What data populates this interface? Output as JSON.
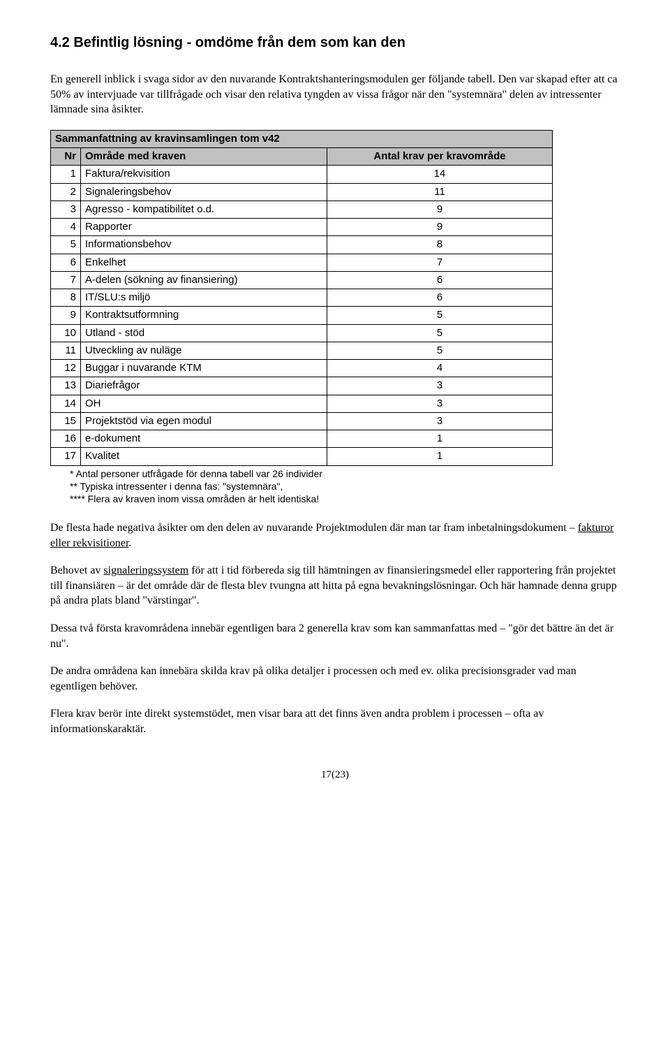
{
  "heading": "4.2 Befintlig lösning - omdöme från dem som kan den",
  "para1": "En generell inblick i svaga sidor av den nuvarande Kontraktshanteringsmodulen ger följande tabell. Den var skapad efter att ca 50% av intervjuade var tillfrågade och visar den relativa tyngden av vissa frågor när den \"systemnära\" delen av intressenter lämnade sina åsikter.",
  "table": {
    "title": "Sammanfattning av kravinsamlingen tom v42",
    "col_nr": "Nr",
    "col_area": "Område med kraven",
    "col_count": "Antal krav per kravområde",
    "rows": [
      {
        "nr": "1",
        "area": "Faktura/rekvisition",
        "count": "14"
      },
      {
        "nr": "2",
        "area": "Signaleringsbehov",
        "count": "11"
      },
      {
        "nr": "3",
        "area": "Agresso - kompatibilitet o.d.",
        "count": "9"
      },
      {
        "nr": "4",
        "area": "Rapporter",
        "count": "9"
      },
      {
        "nr": "5",
        "area": "Informationsbehov",
        "count": "8"
      },
      {
        "nr": "6",
        "area": "Enkelhet",
        "count": "7"
      },
      {
        "nr": "7",
        "area": "A-delen (sökning av finansiering)",
        "count": "6"
      },
      {
        "nr": "8",
        "area": "IT/SLU:s miljö",
        "count": "6"
      },
      {
        "nr": "9",
        "area": "Kontraktsutformning",
        "count": "5"
      },
      {
        "nr": "10",
        "area": "Utland - stöd",
        "count": "5"
      },
      {
        "nr": "11",
        "area": "Utveckling av nuläge",
        "count": "5"
      },
      {
        "nr": "12",
        "area": "Buggar i nuvarande KTM",
        "count": "4"
      },
      {
        "nr": "13",
        "area": "Diariefrågor",
        "count": "3"
      },
      {
        "nr": "14",
        "area": "OH",
        "count": "3"
      },
      {
        "nr": "15",
        "area": "Projektstöd via egen modul",
        "count": "3"
      },
      {
        "nr": "16",
        "area": "e-dokument",
        "count": "1"
      },
      {
        "nr": "17",
        "area": "Kvalitet",
        "count": "1"
      }
    ]
  },
  "footnotes": {
    "f1": "*    Antal personer utfrågade för denna tabell var 26 individer",
    "f2": "**   Typiska intressenter i denna fas: \"systemnära\",",
    "f3": "**** Flera av kraven inom vissa områden är helt identiska!"
  },
  "para2a": "De flesta hade negativa åsikter om den delen av nuvarande Projektmodulen där man tar fram inbetalningsdokument – ",
  "para2_underline": "fakturor eller rekvisitioner",
  "para2b": ".",
  "para3a": "Behovet av ",
  "para3_underline": "signaleringssystem",
  "para3b": " för att i tid förbereda sig till hämtningen av finansieringsmedel eller rapportering från projektet till finansiären – är det område där de flesta blev tvungna att hitta på egna bevakningslösningar. Och här hamnade denna grupp på andra plats bland \"värstingar\".",
  "para4": "Dessa två första kravområdena innebär egentligen bara 2 generella krav som kan sammanfattas med – \"gör det bättre än det är nu\".",
  "para5": "De andra områdena kan innebära skilda krav på olika detaljer i processen och med ev. olika precisionsgrader vad man egentligen behöver.",
  "para6": "Flera krav berör inte direkt systemstödet, men visar bara att det finns även andra problem i processen – ofta av informationskaraktär.",
  "page_number": "17(23)"
}
